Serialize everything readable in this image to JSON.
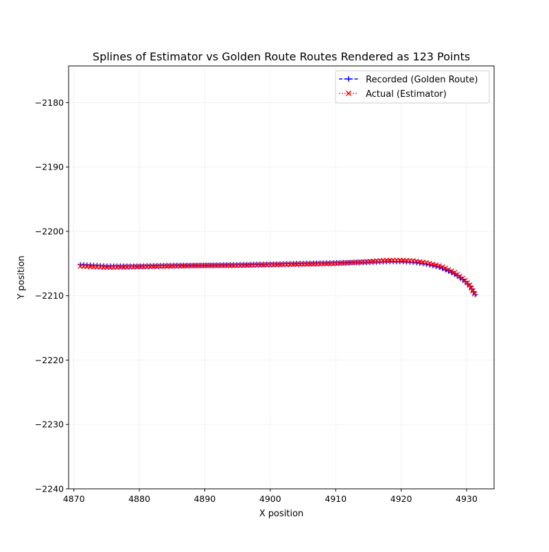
{
  "chart_data": {
    "type": "line",
    "title": "Splines of Estimator vs Golden Route Routes Rendered as 123 Points",
    "xlabel": "X position",
    "ylabel": "Y position",
    "xlim": [
      4869.2,
      4934.2
    ],
    "ylim": [
      -2240,
      -2174.3
    ],
    "x_ticks": [
      4870,
      4880,
      4890,
      4900,
      4910,
      4920,
      4930
    ],
    "y_ticks": [
      -2240,
      -2230,
      -2220,
      -2210,
      -2200,
      -2190,
      -2180
    ],
    "x_tick_labels": [
      "4870",
      "4880",
      "4890",
      "4900",
      "4910",
      "4920",
      "4930"
    ],
    "y_tick_labels": [
      "−2240",
      "−2230",
      "−2220",
      "−2210",
      "−2200",
      "−2190",
      "−2180"
    ],
    "grid": true,
    "legend_position": "top-right",
    "point_count": 123,
    "series": [
      {
        "name": "Recorded (Golden Route)",
        "label": "Recorded (Golden Route)",
        "color": "#0000ff",
        "linestyle": "dashed",
        "marker": "plus",
        "key_points": [
          [
            4871.0,
            -2205.2
          ],
          [
            4875.0,
            -2205.4
          ],
          [
            4880.0,
            -2205.4
          ],
          [
            4885.0,
            -2205.3
          ],
          [
            4890.0,
            -2205.3
          ],
          [
            4895.0,
            -2205.2
          ],
          [
            4900.0,
            -2205.1
          ],
          [
            4905.0,
            -2205.0
          ],
          [
            4910.0,
            -2204.9
          ],
          [
            4915.0,
            -2204.8
          ],
          [
            4918.0,
            -2204.7
          ],
          [
            4920.0,
            -2204.7
          ],
          [
            4922.0,
            -2204.8
          ],
          [
            4924.0,
            -2205.1
          ],
          [
            4926.0,
            -2205.6
          ],
          [
            4928.0,
            -2206.5
          ],
          [
            4929.5,
            -2207.5
          ],
          [
            4930.5,
            -2208.5
          ],
          [
            4931.3,
            -2209.8
          ]
        ]
      },
      {
        "name": "Actual (Estimator)",
        "label": "Actual (Estimator)",
        "color": "#ff0000",
        "linestyle": "dotted",
        "marker": "x",
        "key_points": [
          [
            4871.0,
            -2205.4
          ],
          [
            4875.0,
            -2205.6
          ],
          [
            4880.0,
            -2205.5
          ],
          [
            4885.0,
            -2205.4
          ],
          [
            4890.0,
            -2205.3
          ],
          [
            4895.0,
            -2205.3
          ],
          [
            4900.0,
            -2205.2
          ],
          [
            4905.0,
            -2205.1
          ],
          [
            4910.0,
            -2205.0
          ],
          [
            4915.0,
            -2204.7
          ],
          [
            4918.0,
            -2204.5
          ],
          [
            4920.0,
            -2204.5
          ],
          [
            4922.0,
            -2204.6
          ],
          [
            4924.0,
            -2204.9
          ],
          [
            4926.0,
            -2205.4
          ],
          [
            4928.0,
            -2206.3
          ],
          [
            4929.5,
            -2207.4
          ],
          [
            4930.5,
            -2208.4
          ],
          [
            4931.2,
            -2209.7
          ]
        ]
      }
    ]
  }
}
